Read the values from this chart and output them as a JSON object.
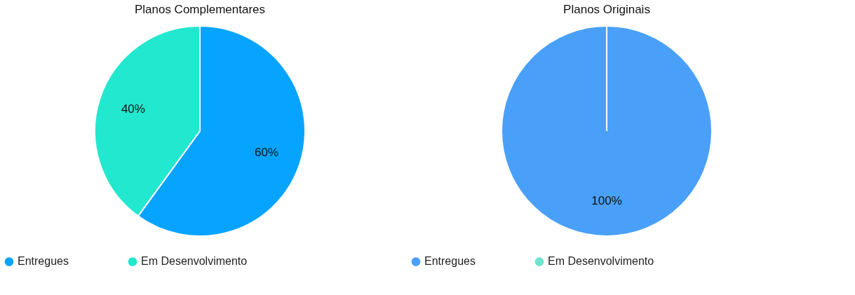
{
  "chart_data": [
    {
      "type": "pie",
      "title": "Planos Complementares",
      "categories": [
        "Entregues",
        "Em Desenvolvimento"
      ],
      "values": [
        60,
        40
      ],
      "colors": [
        "#06a4ff",
        "#22e8cf"
      ],
      "value_labels": [
        "60%",
        "40%"
      ],
      "legend": "bottom"
    },
    {
      "type": "pie",
      "title": "Planos Originais",
      "categories": [
        "Entregues",
        "Em Desenvolvimento"
      ],
      "values": [
        100,
        0
      ],
      "colors": [
        "#4aa0f8",
        "#6ee3d0"
      ],
      "value_labels": [
        "100%",
        null
      ],
      "legend": "bottom"
    }
  ]
}
